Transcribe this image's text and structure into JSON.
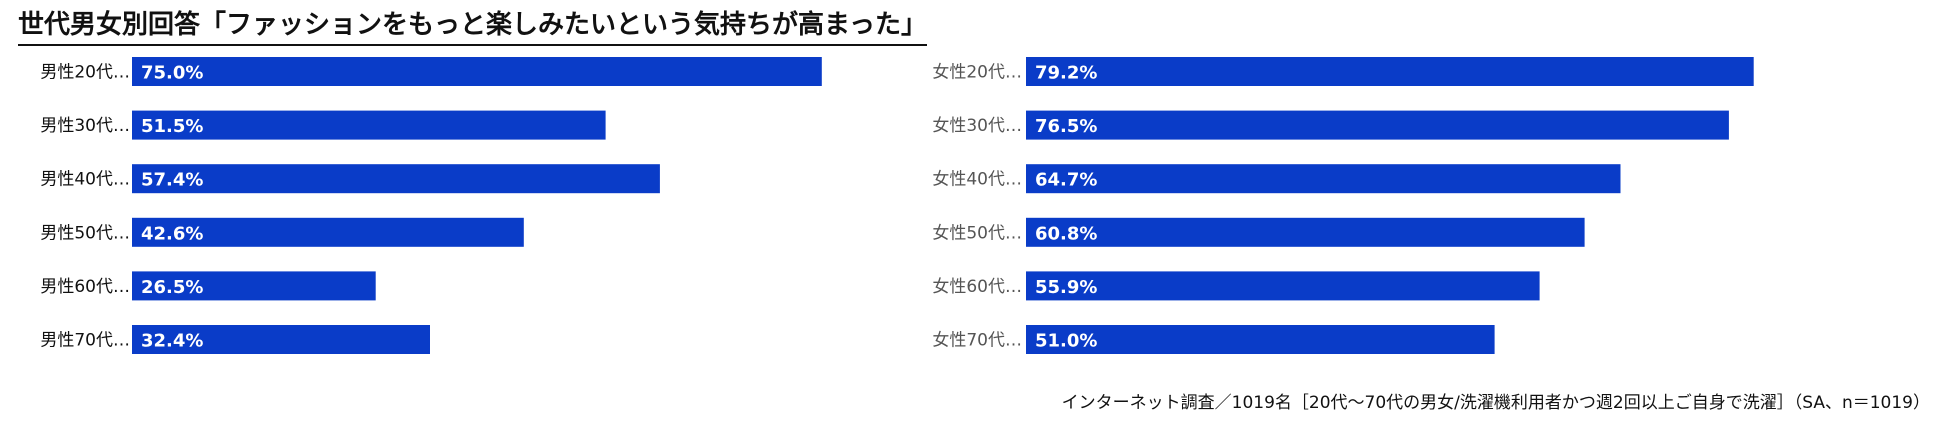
{
  "title": "世代男女別回答「ファッションをもっと楽しみたいという気持ちが高まった」",
  "footnote": "インターネット調査／1019名［20代〜70代の男女/洗濯機利用者かつ週2回以上ご自身で洗濯］（SA、n＝1019）",
  "colors": {
    "bar": "#0a3cc8",
    "label_male": "#111111",
    "label_female": "#555555",
    "value_text": "#ffffff"
  },
  "chart_data": [
    {
      "type": "bar",
      "orientation": "horizontal",
      "group": "male",
      "categories": [
        "男性20代…",
        "男性30代…",
        "男性40代…",
        "男性50代…",
        "男性60代…",
        "男性70代…"
      ],
      "values": [
        75.0,
        51.5,
        57.4,
        42.6,
        26.5,
        32.4
      ],
      "value_labels": [
        "75.0%",
        "51.5%",
        "57.4%",
        "42.6%",
        "26.5%",
        "32.4%"
      ],
      "unit": "%",
      "xlim": [
        0,
        100
      ]
    },
    {
      "type": "bar",
      "orientation": "horizontal",
      "group": "female",
      "categories": [
        "女性20代…",
        "女性30代…",
        "女性40代…",
        "女性50代…",
        "女性60代…",
        "女性70代…"
      ],
      "values": [
        79.2,
        76.5,
        64.7,
        60.8,
        55.9,
        51.0
      ],
      "value_labels": [
        "79.2%",
        "76.5%",
        "64.7%",
        "60.8%",
        "55.9%",
        "51.0%"
      ],
      "unit": "%",
      "xlim": [
        0,
        100
      ]
    }
  ]
}
